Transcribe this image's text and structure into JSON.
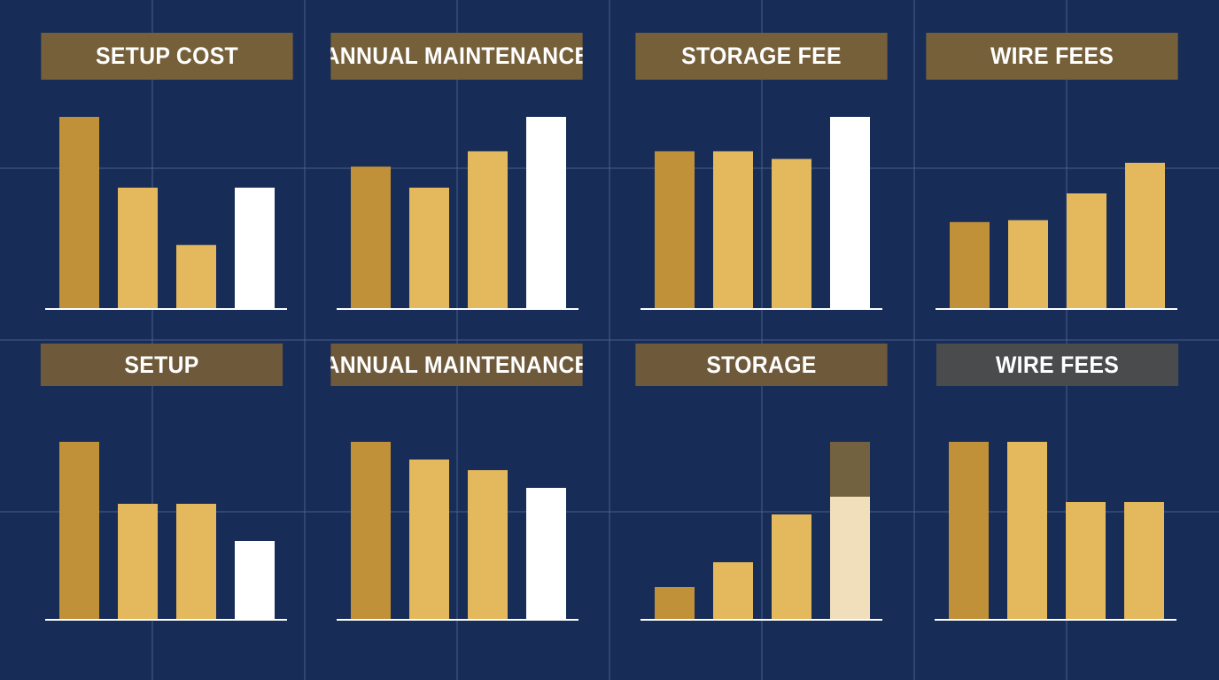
{
  "palette": {
    "background": "#172c57",
    "gridline": "#4a5e88",
    "title_gold": "#756039",
    "title_gold_dark": "#6e5a3a",
    "title_gray": "#4a4b4c",
    "bar_dark_gold": "#c19139",
    "bar_gold": "#e4b95d",
    "bar_white": "#ffffff",
    "bar_cream": "#f1dfbb",
    "bar_muted_gold": "#73623f",
    "baseline": "#ffffff"
  },
  "chart_data": [
    {
      "type": "bar",
      "title": "SETUP COST",
      "title_style": "gold",
      "xlabel": "",
      "ylabel": "",
      "ylim": [
        0,
        100
      ],
      "series": [
        {
          "values": [
            100,
            63,
            33,
            63
          ]
        }
      ],
      "bar_colors": [
        "bar_dark_gold",
        "bar_gold",
        "bar_gold",
        "bar_white"
      ],
      "grid": false,
      "legend": "none"
    },
    {
      "type": "bar",
      "title": "ANNUAL MAINTENANCE",
      "title_style": "gold",
      "xlabel": "",
      "ylabel": "",
      "ylim": [
        0,
        100
      ],
      "series": [
        {
          "values": [
            74,
            63,
            82,
            100
          ]
        }
      ],
      "bar_colors": [
        "bar_dark_gold",
        "bar_gold",
        "bar_gold",
        "bar_white"
      ],
      "grid": false,
      "legend": "none"
    },
    {
      "type": "bar",
      "title": "STORAGE FEE",
      "title_style": "gold",
      "xlabel": "",
      "ylabel": "",
      "ylim": [
        0,
        100
      ],
      "series": [
        {
          "values": [
            82,
            82,
            78,
            100
          ]
        }
      ],
      "bar_colors": [
        "bar_dark_gold",
        "bar_gold",
        "bar_gold",
        "bar_white"
      ],
      "grid": false,
      "legend": "none"
    },
    {
      "type": "bar",
      "title": "WIRE FEES",
      "title_style": "gold",
      "xlabel": "",
      "ylabel": "",
      "ylim": [
        0,
        100
      ],
      "series": [
        {
          "values": [
            45,
            46,
            60,
            76
          ]
        }
      ],
      "bar_colors": [
        "bar_dark_gold",
        "bar_gold",
        "bar_gold",
        "bar_gold"
      ],
      "grid": false,
      "legend": "none"
    },
    {
      "type": "bar",
      "title": "SETUP",
      "title_style": "gold_dark",
      "xlabel": "",
      "ylabel": "",
      "ylim": [
        0,
        100
      ],
      "series": [
        {
          "values": [
            100,
            65,
            65,
            44
          ]
        }
      ],
      "bar_colors": [
        "bar_dark_gold",
        "bar_gold",
        "bar_gold",
        "bar_white"
      ],
      "grid": false,
      "legend": "none"
    },
    {
      "type": "bar",
      "title": "ANNUAL MAINTENANCE",
      "title_style": "gold_dark",
      "xlabel": "",
      "ylabel": "",
      "ylim": [
        0,
        100
      ],
      "series": [
        {
          "values": [
            100,
            90,
            84,
            74
          ]
        }
      ],
      "bar_colors": [
        "bar_dark_gold",
        "bar_gold",
        "bar_gold",
        "bar_white"
      ],
      "grid": false,
      "legend": "none"
    },
    {
      "type": "bar",
      "title": "STORAGE",
      "title_style": "gold_dark",
      "xlabel": "",
      "ylabel": "",
      "ylim": [
        0,
        100
      ],
      "series": [
        {
          "values": [
            18,
            32,
            59,
            69
          ]
        }
      ],
      "bar_colors": [
        "bar_dark_gold",
        "bar_gold",
        "bar_gold",
        "bar_cream"
      ],
      "stacked_extra": [
        0,
        0,
        0,
        31
      ],
      "stacked_extra_color": "bar_muted_gold",
      "grid": false,
      "legend": "none"
    },
    {
      "type": "bar",
      "title": "WIRE FEES",
      "title_style": "gray",
      "xlabel": "",
      "ylabel": "",
      "ylim": [
        0,
        100
      ],
      "series": [
        {
          "values": [
            100,
            100,
            66,
            66
          ]
        }
      ],
      "bar_colors": [
        "bar_dark_gold",
        "bar_gold",
        "bar_gold",
        "bar_gold"
      ],
      "grid": false,
      "legend": "none"
    }
  ]
}
